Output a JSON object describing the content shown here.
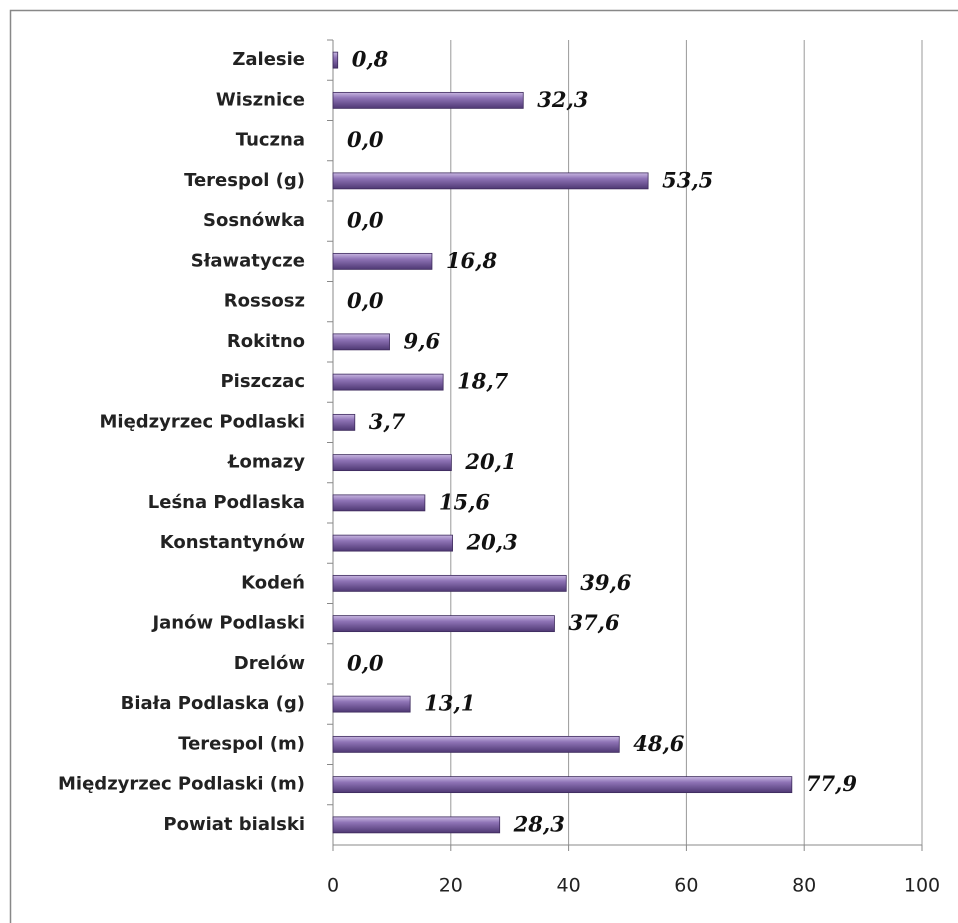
{
  "chart_data": {
    "type": "bar",
    "orientation": "horizontal",
    "categories": [
      "Zalesie",
      "Wisznice",
      "Tuczna",
      "Terespol (g)",
      "Sosnówka",
      "Sławatycze",
      "Rossosz",
      "Rokitno",
      "Piszczac",
      "Międzyrzec Podlaski",
      "Łomazy",
      "Leśna Podlaska",
      "Konstantynów",
      "Kodeń",
      "Janów Podlaski",
      "Drelów",
      "Biała Podlaska (g)",
      "Terespol (m)",
      "Międzyrzec Podlaski (m)",
      "Powiat bialski"
    ],
    "values": [
      0.8,
      32.3,
      0.0,
      53.5,
      0.0,
      16.8,
      0.0,
      9.6,
      18.7,
      3.7,
      20.1,
      15.6,
      20.3,
      39.6,
      37.6,
      0.0,
      13.1,
      48.6,
      77.9,
      28.3
    ],
    "value_labels": [
      "0,8",
      "32,3",
      "0,0",
      "53,5",
      "0,0",
      "16,8",
      "0,0",
      "9,6",
      "18,7",
      "3,7",
      "20,1",
      "15,6",
      "20,3",
      "39,6",
      "37,6",
      "0,0",
      "13,1",
      "48,6",
      "77,9",
      "28,3"
    ],
    "color": "#8064a2",
    "xlim": [
      0,
      100
    ],
    "xticks": [
      0,
      20,
      40,
      60,
      80,
      100
    ],
    "grid": true
  }
}
